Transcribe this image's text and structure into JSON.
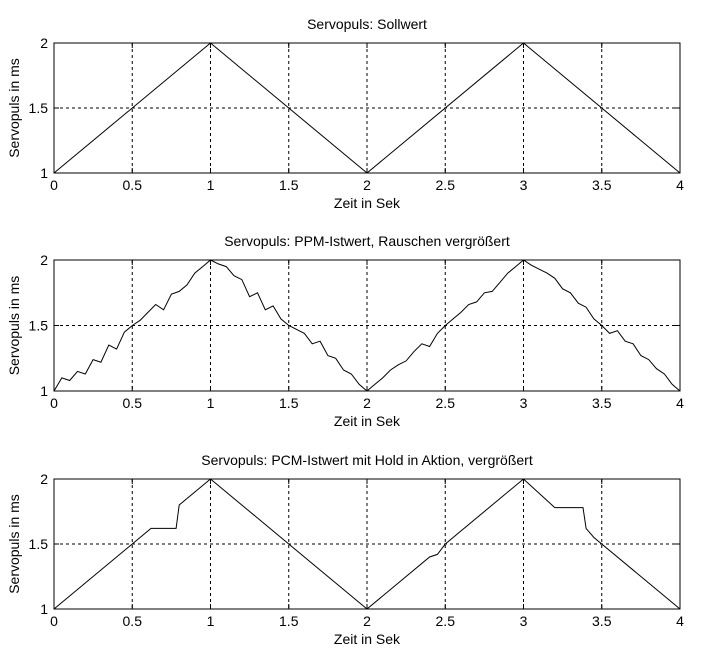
{
  "chart_data": [
    {
      "type": "line",
      "title": "Servopuls: Sollwert",
      "xlabel": "Zeit in Sek",
      "ylabel": "Servopuls in ms",
      "xlim": [
        0,
        4
      ],
      "ylim": [
        1,
        2
      ],
      "xticks": [
        "0",
        "0.5",
        "1",
        "1.5",
        "2",
        "2.5",
        "3",
        "3.5",
        "4"
      ],
      "yticks": [
        "1",
        "1.5",
        "2"
      ],
      "grid": true,
      "series": [
        {
          "x": [
            0,
            1,
            2,
            3,
            4
          ],
          "y": [
            1,
            2,
            1,
            2,
            1
          ]
        }
      ]
    },
    {
      "type": "line",
      "title": "Servopuls: PPM-Istwert, Rauschen vergrößert",
      "xlabel": "Zeit in Sek",
      "ylabel": "Servopuls in ms",
      "xlim": [
        0,
        4
      ],
      "ylim": [
        1,
        2
      ],
      "xticks": [
        "0",
        "0.5",
        "1",
        "1.5",
        "2",
        "2.5",
        "3",
        "3.5",
        "4"
      ],
      "yticks": [
        "1",
        "1.5",
        "2"
      ],
      "grid": true,
      "series": [
        {
          "x": [
            0,
            0.05,
            0.1,
            0.15,
            0.2,
            0.25,
            0.3,
            0.35,
            0.4,
            0.45,
            0.5,
            0.55,
            0.6,
            0.65,
            0.7,
            0.75,
            0.8,
            0.85,
            0.9,
            0.95,
            1.0,
            1.05,
            1.1,
            1.15,
            1.2,
            1.25,
            1.3,
            1.35,
            1.4,
            1.45,
            1.5,
            1.55,
            1.6,
            1.65,
            1.7,
            1.75,
            1.8,
            1.85,
            1.9,
            1.95,
            2.0,
            2.05,
            2.1,
            2.15,
            2.2,
            2.25,
            2.3,
            2.35,
            2.4,
            2.45,
            2.5,
            2.55,
            2.6,
            2.65,
            2.7,
            2.75,
            2.8,
            2.85,
            2.9,
            2.95,
            3.0,
            3.05,
            3.1,
            3.15,
            3.2,
            3.25,
            3.3,
            3.35,
            3.4,
            3.45,
            3.5,
            3.55,
            3.6,
            3.65,
            3.7,
            3.75,
            3.8,
            3.85,
            3.9,
            3.95,
            4.0
          ],
          "y": [
            1.0,
            1.1,
            1.08,
            1.15,
            1.13,
            1.24,
            1.22,
            1.35,
            1.32,
            1.45,
            1.5,
            1.54,
            1.6,
            1.66,
            1.62,
            1.74,
            1.76,
            1.81,
            1.9,
            1.95,
            2.0,
            1.97,
            1.95,
            1.88,
            1.85,
            1.72,
            1.75,
            1.62,
            1.65,
            1.55,
            1.5,
            1.47,
            1.44,
            1.36,
            1.38,
            1.27,
            1.25,
            1.16,
            1.13,
            1.05,
            1.0,
            1.05,
            1.1,
            1.16,
            1.2,
            1.23,
            1.3,
            1.36,
            1.34,
            1.44,
            1.5,
            1.55,
            1.6,
            1.66,
            1.68,
            1.75,
            1.76,
            1.83,
            1.9,
            1.95,
            2.0,
            1.96,
            1.93,
            1.9,
            1.86,
            1.78,
            1.75,
            1.67,
            1.64,
            1.55,
            1.5,
            1.44,
            1.46,
            1.38,
            1.36,
            1.27,
            1.24,
            1.17,
            1.13,
            1.05,
            1.0
          ]
        }
      ]
    },
    {
      "type": "line",
      "title": "Servopuls: PCM-Istwert mit Hold in Aktion, vergrößert",
      "xlabel": "Zeit in Sek",
      "ylabel": "Servopuls in ms",
      "xlim": [
        0,
        4
      ],
      "ylim": [
        1,
        2
      ],
      "xticks": [
        "0",
        "0.5",
        "1",
        "1.5",
        "2",
        "2.5",
        "3",
        "3.5",
        "4"
      ],
      "yticks": [
        "1",
        "1.5",
        "2"
      ],
      "grid": true,
      "series": [
        {
          "x": [
            0,
            0.62,
            0.78,
            0.8,
            0.85,
            1.0,
            1.25,
            1.3,
            1.6,
            1.65,
            2.0,
            2.4,
            2.45,
            2.5,
            2.85,
            3.0,
            3.2,
            3.38,
            3.4,
            3.45,
            4.0
          ],
          "y": [
            1,
            1.62,
            1.62,
            1.8,
            1.85,
            2.0,
            1.75,
            1.7,
            1.4,
            1.35,
            1.0,
            1.4,
            1.42,
            1.5,
            1.85,
            2.0,
            1.78,
            1.78,
            1.62,
            1.55,
            1.0
          ]
        }
      ]
    }
  ]
}
